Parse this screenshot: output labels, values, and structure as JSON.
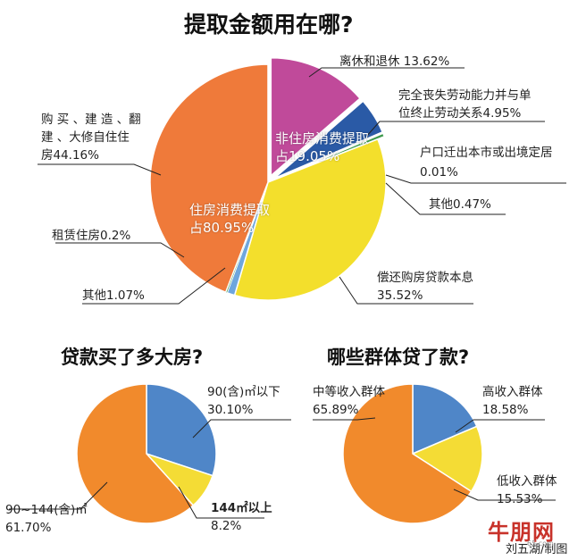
{
  "chart_data": [
    {
      "type": "pie",
      "title": "提取金额用在哪?",
      "slices": [
        {
          "label": "离休和退休",
          "value": 13.62,
          "display": "13.62%",
          "color": "#c04a9a"
        },
        {
          "label": "完全丧失劳动能力并与单位终止劳动关系",
          "value": 4.95,
          "display": "4.95%",
          "color": "#2a5aa6"
        },
        {
          "label": "户口迁出本市或出境定居",
          "value": 0.01,
          "display": "0.01%",
          "color": "#1e3f77"
        },
        {
          "label": "其他",
          "value": 0.47,
          "display": "0.47%",
          "color": "#3e9a4c"
        },
        {
          "label": "偿还购房贷款本息",
          "value": 35.52,
          "display": "35.52%",
          "color": "#f3df2c"
        },
        {
          "label": "其他",
          "value": 1.07,
          "display": "1.07%",
          "color": "#6ea6dd"
        },
        {
          "label": "租赁住房",
          "value": 0.2,
          "display": "0.2%",
          "color": "#3e9a4c"
        },
        {
          "label": "购买、建造、翻建、大修自住住房",
          "value": 44.16,
          "display": "44.16%",
          "color": "#ef7a3a"
        }
      ],
      "groups": [
        {
          "label": "非住房消费提取",
          "value": 19.05,
          "display": "占19.05%"
        },
        {
          "label": "住房消费提取",
          "value": 80.95,
          "display": "占80.95%"
        }
      ]
    },
    {
      "type": "pie",
      "title": "贷款买了多大房?",
      "slices": [
        {
          "label": "90(含)㎡以下",
          "value": 30.1,
          "display": "30.10%",
          "color": "#4f86c8"
        },
        {
          "label": "144㎡以上",
          "value": 8.2,
          "display": "8.2%",
          "color": "#f4dc35"
        },
        {
          "label": "90~144(含)㎡",
          "value": 61.7,
          "display": "61.70%",
          "color": "#f18a2c"
        }
      ]
    },
    {
      "type": "pie",
      "title": "哪些群体贷了款?",
      "slices": [
        {
          "label": "高收入群体",
          "value": 18.58,
          "display": "18.58%",
          "color": "#4f86c8"
        },
        {
          "label": "低收入群体",
          "value": 15.53,
          "display": "15.53%",
          "color": "#f4dc35"
        },
        {
          "label": "中等收入群体",
          "value": 65.89,
          "display": "65.89%",
          "color": "#f18a2c"
        }
      ]
    }
  ],
  "labels": {
    "c1_s0": "离休和退休 13.62%",
    "c1_s1_a": "完全丧失劳动能力并与单",
    "c1_s1_b": "位终止劳动关系4.95%",
    "c1_s2_a": "户口迁出本市或出境定居",
    "c1_s2_b": "0.01%",
    "c1_s3": "其他0.47%",
    "c1_s4_a": "偿还购房贷款本息",
    "c1_s4_b": "35.52%",
    "c1_s5": "其他1.07%",
    "c1_s6": "租赁住房0.2%",
    "c1_s7_a": "购 买 、建 造 、翻",
    "c1_s7_b": "建 、大修自住住",
    "c1_s7_c": "房44.16%",
    "c1_g0_a": "非住房消费提取",
    "c1_g0_b": "占19.05%",
    "c1_g1_a": "住房消费提取",
    "c1_g1_b": "占80.95%",
    "c2_s0_a": "90(含)㎡以下",
    "c2_s0_b": "30.10%",
    "c2_s1_a": "144㎡以上",
    "c2_s1_b": "8.2%",
    "c2_s2_a": "90~144(含)㎡",
    "c2_s2_b": "61.70%",
    "c3_s0_a": "高收入群体",
    "c3_s0_b": "18.58%",
    "c3_s1_a": "低收入群体",
    "c3_s1_b": "15.53%",
    "c3_s2_a": "中等收入群体",
    "c3_s2_b": "65.89%"
  },
  "credit": "刘五湖/制图",
  "watermark": "牛朋网",
  "watermark_small": "65.com"
}
